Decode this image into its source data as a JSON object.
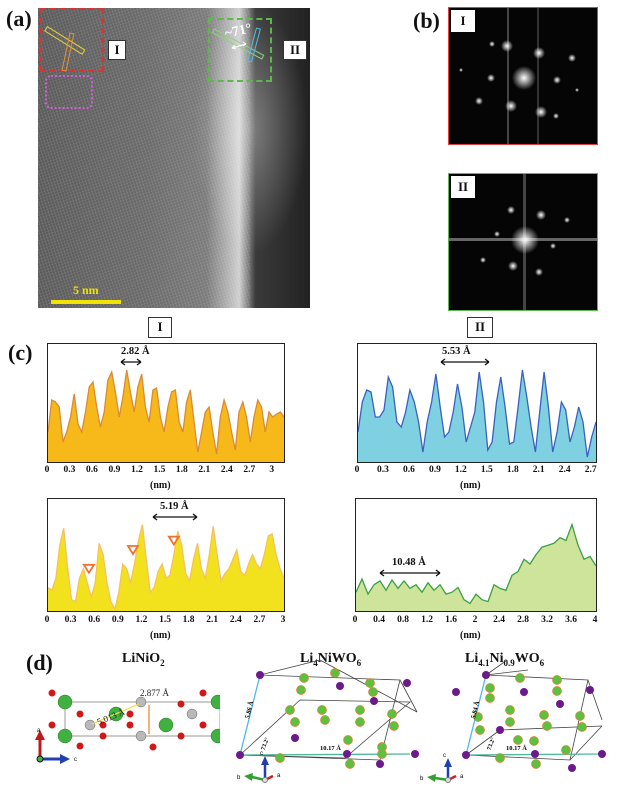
{
  "panels": {
    "a": {
      "label": "(a)",
      "region_I_label": "I",
      "region_II_label": "II",
      "angle_label": "~71°",
      "scale_bar": "5 nm",
      "colors": {
        "region_I": "#e03030",
        "region_II": "#5cb84a",
        "dotted_region": "#d060d0",
        "scale_bar": "#f2e400"
      }
    },
    "b": {
      "label": "(b)",
      "fft_I_label": "I",
      "fft_II_label": "II",
      "colors": {
        "fft_I_border": "#e04040",
        "fft_II_border": "#60b850"
      }
    },
    "c": {
      "label": "(c)",
      "col_I_label": "I",
      "col_II_label": "II",
      "unit": "(nm)"
    },
    "d": {
      "label": "(d)",
      "structures": [
        {
          "formula_main": "LiNiO",
          "formula_sub": "2",
          "distances": [
            "5.013 Å",
            "2.877 Å"
          ],
          "axes": [
            "a",
            "c"
          ]
        },
        {
          "formula_parts": [
            "Li",
            "4",
            "NiWO",
            "6"
          ],
          "distances": [
            "5.86 Å",
            "10.17 Å"
          ],
          "angle": "73.2°",
          "axes": [
            "c",
            "b",
            "a"
          ]
        },
        {
          "formula_parts": [
            "Li",
            "4.1",
            "Ni",
            "0.9",
            "WO",
            "6"
          ],
          "distances": [
            "5.84 Å",
            "10.17 Å"
          ],
          "angle": "73.2°",
          "axes": [
            "c",
            "b",
            "a"
          ]
        }
      ]
    }
  },
  "chart_data": [
    {
      "type": "area",
      "title": "I (upper)",
      "xlabel": "(nm)",
      "ylabel": "",
      "xlim": [
        0,
        3.15
      ],
      "x_ticks": [
        "0",
        "0.3",
        "0.6",
        "0.9",
        "1.2",
        "1.5",
        "1.8",
        "2.1",
        "2.4",
        "2.7",
        "3"
      ],
      "annotation": "2.82 Å",
      "color_fill": "#f7b81a",
      "color_line": "#d98a3a",
      "x": [
        0,
        0.05,
        0.1,
        0.15,
        0.2,
        0.25,
        0.3,
        0.35,
        0.4,
        0.45,
        0.5,
        0.55,
        0.6,
        0.65,
        0.7,
        0.75,
        0.8,
        0.85,
        0.9,
        0.95,
        1.0,
        1.05,
        1.1,
        1.15,
        1.2,
        1.25,
        1.3,
        1.35,
        1.4,
        1.45,
        1.5,
        1.55,
        1.6,
        1.65,
        1.7,
        1.75,
        1.8,
        1.85,
        1.9,
        1.95,
        2.0,
        2.05,
        2.1,
        2.15,
        2.2,
        2.25,
        2.3,
        2.35,
        2.4,
        2.45,
        2.5,
        2.55,
        2.6,
        2.65,
        2.7,
        2.75,
        2.8,
        2.85,
        2.9,
        2.95,
        3.0,
        3.05,
        3.1,
        3.15
      ],
      "values": [
        0.3,
        0.62,
        0.6,
        0.55,
        0.2,
        0.3,
        0.45,
        0.68,
        0.38,
        0.3,
        0.5,
        0.75,
        0.8,
        0.55,
        0.35,
        0.5,
        0.82,
        0.9,
        0.7,
        0.45,
        0.65,
        0.92,
        0.7,
        0.5,
        0.75,
        0.88,
        0.55,
        0.4,
        0.72,
        0.74,
        0.45,
        0.3,
        0.55,
        0.7,
        0.72,
        0.4,
        0.3,
        0.6,
        0.72,
        0.4,
        0.1,
        0.3,
        0.5,
        0.55,
        0.3,
        0.08,
        0.45,
        0.62,
        0.5,
        0.3,
        0.12,
        0.5,
        0.6,
        0.45,
        0.2,
        0.45,
        0.62,
        0.55,
        0.3,
        0.5,
        0.45,
        0.48,
        0.5,
        0.45
      ]
    },
    {
      "type": "area",
      "title": "II (upper)",
      "xlabel": "(nm)",
      "ylabel": "",
      "xlim": [
        0,
        2.75
      ],
      "x_ticks": [
        "0",
        "0.3",
        "0.6",
        "0.9",
        "1.2",
        "1.5",
        "1.8",
        "2.1",
        "2.4",
        "2.7"
      ],
      "annotation": "5.53 Å",
      "color_fill": "#7fd0e0",
      "color_line": "#3a60c0",
      "x": [
        0,
        0.05,
        0.1,
        0.15,
        0.2,
        0.25,
        0.3,
        0.35,
        0.4,
        0.45,
        0.5,
        0.55,
        0.6,
        0.65,
        0.7,
        0.75,
        0.8,
        0.85,
        0.9,
        0.95,
        1.0,
        1.05,
        1.1,
        1.15,
        1.2,
        1.25,
        1.3,
        1.35,
        1.4,
        1.45,
        1.5,
        1.55,
        1.6,
        1.65,
        1.7,
        1.75,
        1.8,
        1.85,
        1.9,
        1.95,
        2.0,
        2.05,
        2.1,
        2.15,
        2.2,
        2.25,
        2.3,
        2.35,
        2.4,
        2.45,
        2.5,
        2.55,
        2.6,
        2.65,
        2.7,
        2.75
      ],
      "values": [
        0.3,
        0.6,
        0.72,
        0.7,
        0.45,
        0.45,
        0.52,
        0.85,
        0.75,
        0.4,
        0.35,
        0.5,
        0.72,
        0.6,
        0.4,
        0.1,
        0.4,
        0.6,
        0.88,
        0.55,
        0.25,
        0.3,
        0.5,
        0.78,
        0.55,
        0.2,
        0.35,
        0.5,
        0.9,
        0.6,
        0.12,
        0.2,
        0.6,
        0.85,
        0.55,
        0.18,
        0.2,
        0.55,
        0.92,
        0.65,
        0.35,
        0.1,
        0.5,
        0.9,
        0.55,
        0.1,
        0.3,
        0.6,
        0.52,
        0.2,
        0.35,
        0.55,
        0.4,
        0.05,
        0.25,
        0.4
      ]
    },
    {
      "type": "area",
      "title": "I (lower)",
      "xlabel": "(nm)",
      "ylabel": "",
      "xlim": [
        0,
        3
      ],
      "x_ticks": [
        "0",
        "0.3",
        "0.6",
        "0.9",
        "1.2",
        "1.5",
        "1.8",
        "2.1",
        "2.4",
        "2.7",
        "3"
      ],
      "annotation": "5.19 Å",
      "markers_x": [
        0.52,
        1.08,
        1.6
      ],
      "marker_color": "#f07030",
      "color_fill": "#f2e21e",
      "color_line": "#f5c060",
      "x": [
        0,
        0.05,
        0.1,
        0.15,
        0.2,
        0.25,
        0.3,
        0.35,
        0.4,
        0.45,
        0.5,
        0.55,
        0.6,
        0.65,
        0.7,
        0.75,
        0.8,
        0.85,
        0.9,
        0.95,
        1.0,
        1.05,
        1.1,
        1.15,
        1.2,
        1.25,
        1.3,
        1.35,
        1.4,
        1.45,
        1.5,
        1.55,
        1.6,
        1.65,
        1.7,
        1.75,
        1.8,
        1.85,
        1.9,
        1.95,
        2.0,
        2.05,
        2.1,
        2.15,
        2.2,
        2.25,
        2.3,
        2.35,
        2.4,
        2.45,
        2.5,
        2.55,
        2.6,
        2.65,
        2.7,
        2.75,
        2.8,
        2.85,
        2.9,
        2.95,
        3.0
      ],
      "values": [
        0.25,
        0.22,
        0.35,
        0.7,
        0.88,
        0.45,
        0.12,
        0.1,
        0.35,
        0.45,
        0.3,
        0.15,
        0.3,
        0.72,
        0.6,
        0.3,
        0.1,
        0.02,
        0.2,
        0.5,
        0.45,
        0.3,
        0.5,
        0.75,
        0.92,
        0.55,
        0.2,
        0.25,
        0.42,
        0.5,
        0.35,
        0.38,
        0.6,
        0.85,
        0.7,
        0.4,
        0.32,
        0.55,
        0.72,
        0.45,
        0.35,
        0.6,
        0.9,
        0.6,
        0.32,
        0.4,
        0.45,
        0.55,
        0.65,
        0.42,
        0.38,
        0.5,
        0.6,
        0.5,
        0.45,
        0.6,
        0.8,
        0.82,
        0.6,
        0.45,
        0.35
      ]
    },
    {
      "type": "area",
      "title": "II (lower)",
      "xlabel": "(nm)",
      "ylabel": "",
      "xlim": [
        0,
        4
      ],
      "x_ticks": [
        "0",
        "0.4",
        "0.8",
        "1.2",
        "1.6",
        "2",
        "2.4",
        "2.8",
        "3.2",
        "3.6",
        "4"
      ],
      "annotation": "10.48 Å",
      "color_fill": "#cde49a",
      "color_line": "#3aa040",
      "x": [
        0,
        0.1,
        0.2,
        0.3,
        0.4,
        0.5,
        0.6,
        0.7,
        0.8,
        0.9,
        1.0,
        1.1,
        1.2,
        1.3,
        1.4,
        1.5,
        1.6,
        1.7,
        1.8,
        1.9,
        2.0,
        2.1,
        2.2,
        2.3,
        2.4,
        2.5,
        2.6,
        2.7,
        2.8,
        2.9,
        3.0,
        3.1,
        3.2,
        3.3,
        3.4,
        3.5,
        3.6,
        3.7,
        3.8,
        3.9,
        4.0
      ],
      "values": [
        0.2,
        0.34,
        0.18,
        0.28,
        0.32,
        0.22,
        0.33,
        0.24,
        0.32,
        0.24,
        0.28,
        0.2,
        0.3,
        0.22,
        0.28,
        0.18,
        0.2,
        0.25,
        0.12,
        0.08,
        0.18,
        0.12,
        0.1,
        0.28,
        0.24,
        0.22,
        0.38,
        0.42,
        0.55,
        0.5,
        0.6,
        0.68,
        0.7,
        0.72,
        0.78,
        0.75,
        0.92,
        0.7,
        0.55,
        0.58,
        0.48
      ]
    }
  ]
}
